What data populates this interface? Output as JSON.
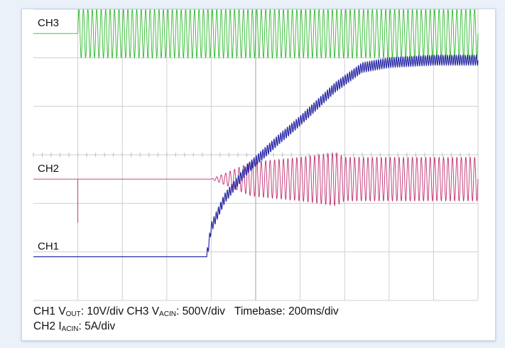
{
  "chart_data": {
    "type": "line",
    "title": "",
    "xlabel": "",
    "ylabel": "",
    "grid": true,
    "grid_divisions": {
      "x": 10,
      "y": 6
    },
    "x_unit": "div",
    "y_unit": "div",
    "series": [
      {
        "name": "CH3",
        "color": "#2db82d",
        "channel_label": "CH3",
        "baseline_div": 5.5,
        "description_points": [
          [
            0,
            5.5
          ],
          [
            1.0,
            5.5
          ]
        ],
        "oscillation": {
          "start_div": 1.0,
          "center_div": 5.5,
          "amplitude_div": 0.5,
          "cycles_per_div": 10
        }
      },
      {
        "name": "CH2",
        "color": "#c0306f",
        "channel_label": "CH2",
        "baseline_div": 2.5,
        "spike": {
          "x_div": 1.0,
          "bottom_div": 1.6
        },
        "envelope": [
          [
            4.0,
            0.0
          ],
          [
            4.9,
            0.35
          ],
          [
            6.0,
            0.45
          ],
          [
            6.8,
            0.55
          ],
          [
            7.0,
            0.45
          ],
          [
            10.0,
            0.45
          ]
        ]
      },
      {
        "name": "CH1",
        "color": "#2a2aa6",
        "channel_label": "CH1",
        "baseline_div": 0.9,
        "points": [
          [
            0,
            0.9
          ],
          [
            3.9,
            0.9
          ],
          [
            4.0,
            1.5
          ],
          [
            4.3,
            2.1
          ],
          [
            4.8,
            2.7
          ],
          [
            5.5,
            3.3
          ],
          [
            6.0,
            3.7
          ],
          [
            6.8,
            4.4
          ],
          [
            7.4,
            4.8
          ],
          [
            8.0,
            4.9
          ],
          [
            9.0,
            4.95
          ],
          [
            10.0,
            4.95
          ]
        ],
        "ripple_div": 0.1
      }
    ]
  },
  "caption": {
    "line1": {
      "ch1_prefix": "CH1 V",
      "ch1_sub": "OUT",
      "ch1_value": ": 10V/div",
      "ch3_prefix": "CH3 V",
      "ch3_sub": "ACIN",
      "ch3_value": ": 500V/div",
      "timebase": "Timebase: 200ms/div"
    },
    "line2": {
      "ch2_prefix": "CH2 I",
      "ch2_sub": "ACIN",
      "ch2_value": ": 5A/div"
    }
  }
}
